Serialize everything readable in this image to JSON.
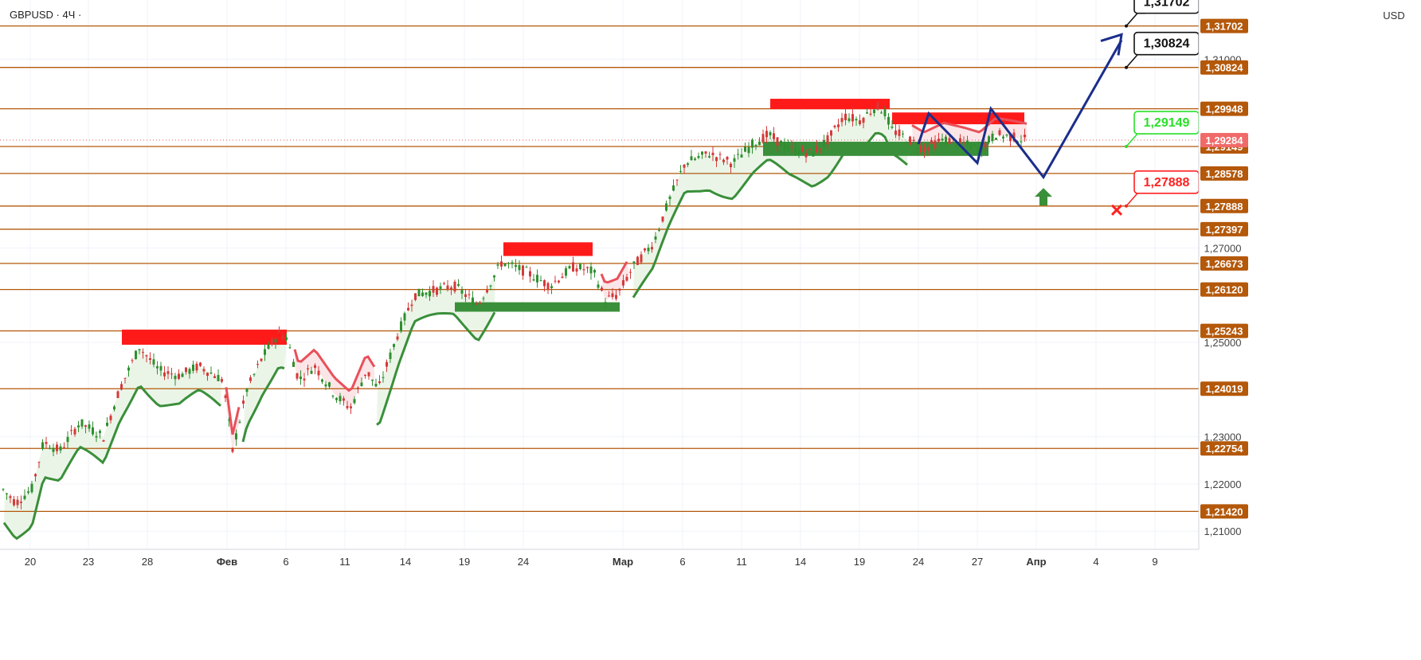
{
  "symbol_header": "GBPUSD · 4Ч ·",
  "currency": "USD",
  "colors": {
    "level_line": "#b4580a",
    "level_label_bg": "#b4580a",
    "price_label_bg": "#f06a6a",
    "bull_candle": "#2f8f2f",
    "bear_candle": "#d43a3a",
    "resistance_zone": "#ff1a1a",
    "support_zone": "#3a8f3a",
    "trend_green": "#3a8f3a",
    "trend_red": "#e8505a",
    "forecast_line": "#1b2e8c",
    "target_green": "#29e029",
    "stop_red": "#ff2020",
    "grid": "#f0f3fa"
  },
  "chart_data": {
    "type": "candlestick",
    "title": "GBPUSD · 4Ч ·",
    "ylabel": "USD",
    "ylim": [
      1.2065,
      1.3205
    ],
    "x_ticks": [
      "20",
      "23",
      "28",
      "Фев",
      "6",
      "11",
      "14",
      "19",
      "24",
      "Мар",
      "6",
      "11",
      "14",
      "19",
      "24",
      "27",
      "Апр",
      "4",
      "9"
    ],
    "y_ticks": [
      1.21,
      1.22,
      1.23,
      1.25,
      1.27,
      1.31
    ],
    "y_tick_labels": [
      "1,21000",
      "1,22000",
      "1,23000",
      "1,25000",
      "1,27000",
      "1,31000"
    ],
    "levels": [
      {
        "value": 1.31702,
        "label": "1,31702"
      },
      {
        "value": 1.30824,
        "label": "1,30824"
      },
      {
        "value": 1.29948,
        "label": "1,29948"
      },
      {
        "value": 1.29149,
        "label": "1,29149"
      },
      {
        "value": 1.28578,
        "label": "1,28578"
      },
      {
        "value": 1.27888,
        "label": "1,27888"
      },
      {
        "value": 1.27397,
        "label": "1,27397"
      },
      {
        "value": 1.26673,
        "label": "1,26673"
      },
      {
        "value": 1.2612,
        "label": "1,26120"
      },
      {
        "value": 1.25243,
        "label": "1,25243"
      },
      {
        "value": 1.24019,
        "label": "1,24019"
      },
      {
        "value": 1.22754,
        "label": "1,22754"
      },
      {
        "value": 1.2142,
        "label": "1,21420"
      }
    ],
    "current_price": {
      "value": 1.29284,
      "label": "1,29284"
    },
    "price_path": [
      [
        0,
        1.2195
      ],
      [
        20,
        1.216
      ],
      [
        40,
        1.219
      ],
      [
        55,
        1.229
      ],
      [
        75,
        1.227
      ],
      [
        100,
        1.233
      ],
      [
        130,
        1.23
      ],
      [
        150,
        1.24
      ],
      [
        175,
        1.249
      ],
      [
        200,
        1.244
      ],
      [
        225,
        1.243
      ],
      [
        250,
        1.245
      ],
      [
        280,
        1.242
      ],
      [
        292,
        1.227
      ],
      [
        310,
        1.24
      ],
      [
        330,
        1.247
      ],
      [
        350,
        1.252
      ],
      [
        360,
        1.251
      ],
      [
        375,
        1.242
      ],
      [
        395,
        1.245
      ],
      [
        420,
        1.239
      ],
      [
        440,
        1.236
      ],
      [
        460,
        1.244
      ],
      [
        475,
        1.24
      ],
      [
        500,
        1.252
      ],
      [
        520,
        1.26
      ],
      [
        545,
        1.261
      ],
      [
        570,
        1.262
      ],
      [
        600,
        1.258
      ],
      [
        630,
        1.267
      ],
      [
        660,
        1.265
      ],
      [
        690,
        1.262
      ],
      [
        720,
        1.266
      ],
      [
        745,
        1.265
      ],
      [
        760,
        1.259
      ],
      [
        775,
        1.26
      ],
      [
        795,
        1.266
      ],
      [
        820,
        1.271
      ],
      [
        840,
        1.28
      ],
      [
        860,
        1.288
      ],
      [
        890,
        1.29
      ],
      [
        920,
        1.288
      ],
      [
        945,
        1.292
      ],
      [
        965,
        1.294
      ],
      [
        990,
        1.291
      ],
      [
        1020,
        1.29
      ],
      [
        1040,
        1.293
      ],
      [
        1060,
        1.298
      ],
      [
        1080,
        1.297
      ],
      [
        1100,
        1.3
      ],
      [
        1110,
        1.299
      ],
      [
        1120,
        1.295
      ],
      [
        1140,
        1.293
      ],
      [
        1160,
        1.291
      ],
      [
        1185,
        1.293
      ],
      [
        1210,
        1.292
      ],
      [
        1230,
        1.291
      ],
      [
        1250,
        1.294
      ],
      [
        1270,
        1.2935
      ],
      [
        1290,
        1.2928
      ]
    ],
    "resistance_zones": [
      {
        "x0": 153,
        "x1": 360,
        "top": 1.2527,
        "bottom": 1.2495
      },
      {
        "x0": 632,
        "x1": 744,
        "top": 1.2712,
        "bottom": 1.2683
      },
      {
        "x0": 967,
        "x1": 1117,
        "top": 1.3016,
        "bottom": 1.2994
      },
      {
        "x0": 1120,
        "x1": 1286,
        "top": 1.2987,
        "bottom": 1.2962
      }
    ],
    "support_zones": [
      {
        "x0": 571,
        "x1": 778,
        "top": 1.2585,
        "bottom": 1.2565
      },
      {
        "x0": 958,
        "x1": 1241,
        "top": 1.2925,
        "bottom": 1.2895
      }
    ],
    "forecast_path": [
      [
        1153,
        1.292
      ],
      [
        1166,
        1.2985
      ],
      [
        1227,
        1.288
      ],
      [
        1244,
        1.2995
      ],
      [
        1310,
        1.285
      ],
      [
        1408,
        1.314
      ]
    ],
    "forecast_arrow_tip": {
      "x": 1408,
      "value": 1.3152
    },
    "long_entry_marker": {
      "x": 1310,
      "value": 1.28
    },
    "callouts": [
      {
        "label": "1,31702",
        "value": 1.31702,
        "style": "target"
      },
      {
        "label": "1,30824",
        "value": 1.30824,
        "style": "target"
      },
      {
        "label": "1,29149",
        "value": 1.29149,
        "style": "entry"
      },
      {
        "label": "1,27888",
        "value": 1.27888,
        "style": "stop"
      }
    ]
  }
}
